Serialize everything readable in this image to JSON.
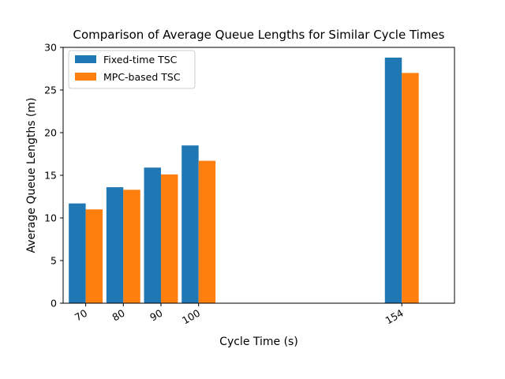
{
  "chart_data": {
    "type": "bar",
    "title": "Comparison of Average Queue Lengths for Similar Cycle Times",
    "xlabel": "Cycle Time (s)",
    "ylabel": "Average Queue Lengths (m)",
    "x": [
      70,
      80,
      90,
      100,
      154
    ],
    "x_tick_labels": [
      "70",
      "80",
      "90",
      "100",
      "154"
    ],
    "xlim": [
      64,
      168
    ],
    "ylim": [
      0,
      30
    ],
    "y_ticks": [
      0,
      5,
      10,
      15,
      20,
      25,
      30
    ],
    "y_tick_labels": [
      "0",
      "5",
      "10",
      "15",
      "20",
      "25",
      "30"
    ],
    "bar_width": 4.5,
    "grid": false,
    "legend_position": "top-left",
    "series": [
      {
        "name": "Fixed-time TSC",
        "color": "#1f77b4",
        "values": [
          11.7,
          13.6,
          15.9,
          18.5,
          28.8
        ]
      },
      {
        "name": "MPC-based TSC",
        "color": "#ff7f0e",
        "values": [
          11.0,
          13.3,
          15.1,
          16.7,
          27.0
        ]
      }
    ]
  }
}
